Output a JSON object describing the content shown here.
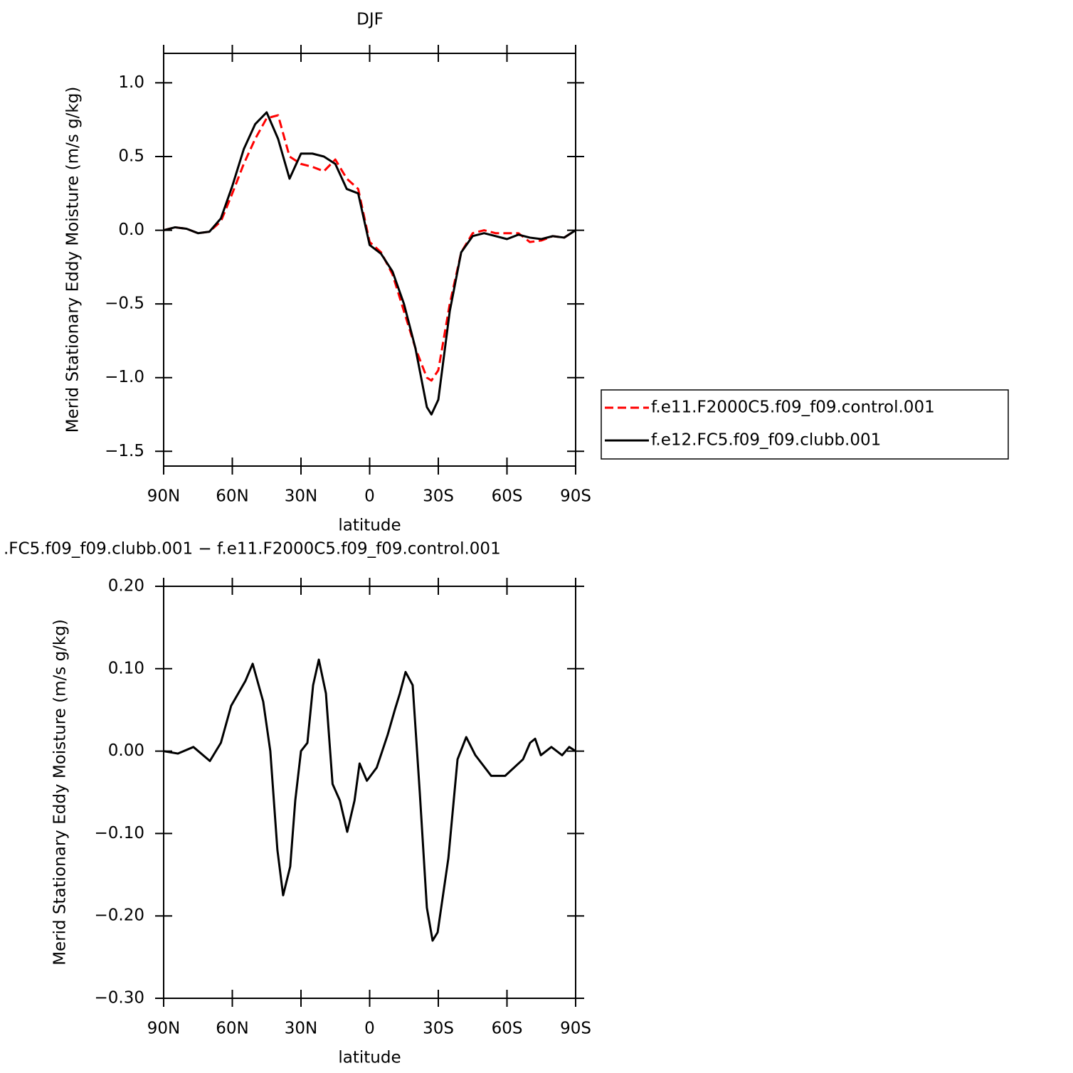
{
  "chart_data": [
    {
      "type": "line",
      "title": "DJF",
      "xlabel": "latitude",
      "ylabel": "Merid Stationary Eddy Moisture (m/s g/kg)",
      "xlim": [
        90,
        -90
      ],
      "ylim": [
        -1.6,
        1.2
      ],
      "xticks": [
        {
          "value": 90,
          "label": "90N"
        },
        {
          "value": 60,
          "label": "60N"
        },
        {
          "value": 30,
          "label": "30N"
        },
        0,
        {
          "value": -30,
          "label": "30S"
        },
        {
          "value": -60,
          "label": "60S"
        },
        {
          "value": -90,
          "label": "90S"
        }
      ],
      "yticks": [
        {
          "value": 1.0,
          "label": "1.0"
        },
        {
          "value": 0.5,
          "label": "0.5"
        },
        {
          "value": 0.0,
          "label": "0.0"
        },
        {
          "value": -0.5,
          "label": "−0.5"
        },
        {
          "value": -1.0,
          "label": "−1.0"
        },
        {
          "value": -1.5,
          "label": "−1.5"
        }
      ],
      "legend": "right",
      "x": [
        90,
        85,
        80,
        75,
        70,
        65,
        60,
        55,
        50,
        45,
        40,
        35,
        30,
        25,
        20,
        15,
        10,
        5,
        0,
        -5,
        -10,
        -15,
        -20,
        -25,
        -27,
        -30,
        -35,
        -40,
        -45,
        -50,
        -55,
        -60,
        -65,
        -70,
        -75,
        -80,
        -85,
        -90
      ],
      "series": [
        {
          "name": "f.e11.F2000C5.f09_f09.control.001",
          "color": "#ff0000",
          "style": "dashed",
          "values": [
            0,
            0.02,
            0.01,
            -0.02,
            -0.01,
            0.06,
            0.25,
            0.45,
            0.62,
            0.76,
            0.78,
            0.5,
            0.45,
            0.43,
            0.4,
            0.48,
            0.35,
            0.28,
            -0.08,
            -0.15,
            -0.3,
            -0.55,
            -0.8,
            -1.0,
            -1.02,
            -0.95,
            -0.5,
            -0.15,
            -0.02,
            0.0,
            -0.02,
            -0.02,
            -0.02,
            -0.08,
            -0.07,
            -0.04,
            -0.05,
            0
          ]
        },
        {
          "name": "f.e12.FC5.f09_f09.clubb.001",
          "color": "#000000",
          "style": "solid",
          "values": [
            0,
            0.02,
            0.01,
            -0.02,
            -0.01,
            0.08,
            0.3,
            0.55,
            0.72,
            0.8,
            0.62,
            0.35,
            0.52,
            0.52,
            0.5,
            0.45,
            0.28,
            0.25,
            -0.1,
            -0.16,
            -0.28,
            -0.5,
            -0.8,
            -1.2,
            -1.25,
            -1.15,
            -0.55,
            -0.15,
            -0.04,
            -0.02,
            -0.04,
            -0.06,
            -0.03,
            -0.05,
            -0.06,
            -0.04,
            -0.05,
            0
          ]
        }
      ]
    },
    {
      "type": "line",
      "title": ".FC5.f09_f09.clubb.001 − f.e11.F2000C5.f09_f09.control.001",
      "xlabel": "latitude",
      "ylabel": "Merid Stationary Eddy Moisture (m/s g/kg)",
      "xlim": [
        90,
        -90
      ],
      "ylim": [
        -0.3,
        0.2
      ],
      "xticks": [
        {
          "value": 90,
          "label": "90N"
        },
        {
          "value": 60,
          "label": "60N"
        },
        {
          "value": 30,
          "label": "30N"
        },
        0,
        {
          "value": -30,
          "label": "30S"
        },
        {
          "value": -60,
          "label": "60S"
        },
        {
          "value": -90,
          "label": "90S"
        }
      ],
      "yticks": [
        {
          "value": 0.2,
          "label": "0.20"
        },
        {
          "value": 0.1,
          "label": "0.10"
        },
        {
          "value": 0.0,
          "label": "0.00"
        },
        {
          "value": -0.1,
          "label": "−0.10"
        },
        {
          "value": -0.2,
          "label": "−0.20"
        },
        {
          "value": -0.3,
          "label": "−0.30"
        }
      ],
      "x": [
        90,
        83.8,
        77,
        69.8,
        65,
        60.5,
        54.3,
        51.1,
        46.5,
        43.4,
        40.3,
        37.8,
        34.7,
        32.5,
        30,
        27.2,
        24.7,
        22.2,
        19.1,
        16.2,
        13,
        9.8,
        6.6,
        4.4,
        1.2,
        -3.1,
        -7.9,
        -11,
        -13.2,
        -15.7,
        -18.8,
        -21.9,
        -25,
        -27.5,
        -29.7,
        -34.4,
        -38.4,
        -42.2,
        -46.2,
        -53.1,
        -59.2,
        -67,
        -70.1,
        -72.3,
        -74.8,
        -79.4,
        -84.1,
        -87.2,
        -90
      ],
      "series": [
        {
          "color": "#000000",
          "style": "solid",
          "values": [
            0,
            -0.003,
            0.005,
            -0.012,
            0.01,
            0.055,
            0.085,
            0.106,
            0.06,
            0.0,
            -0.12,
            -0.175,
            -0.14,
            -0.06,
            0.0,
            0.01,
            0.08,
            0.111,
            0.07,
            -0.04,
            -0.06,
            -0.098,
            -0.06,
            -0.015,
            -0.036,
            -0.02,
            0.02,
            0.05,
            0.07,
            0.096,
            0.08,
            -0.05,
            -0.19,
            -0.23,
            -0.22,
            -0.13,
            -0.01,
            0.017,
            -0.005,
            -0.03,
            -0.03,
            -0.01,
            0.01,
            0.015,
            -0.005,
            0.005,
            -0.005,
            0.005,
            0
          ]
        }
      ]
    }
  ]
}
